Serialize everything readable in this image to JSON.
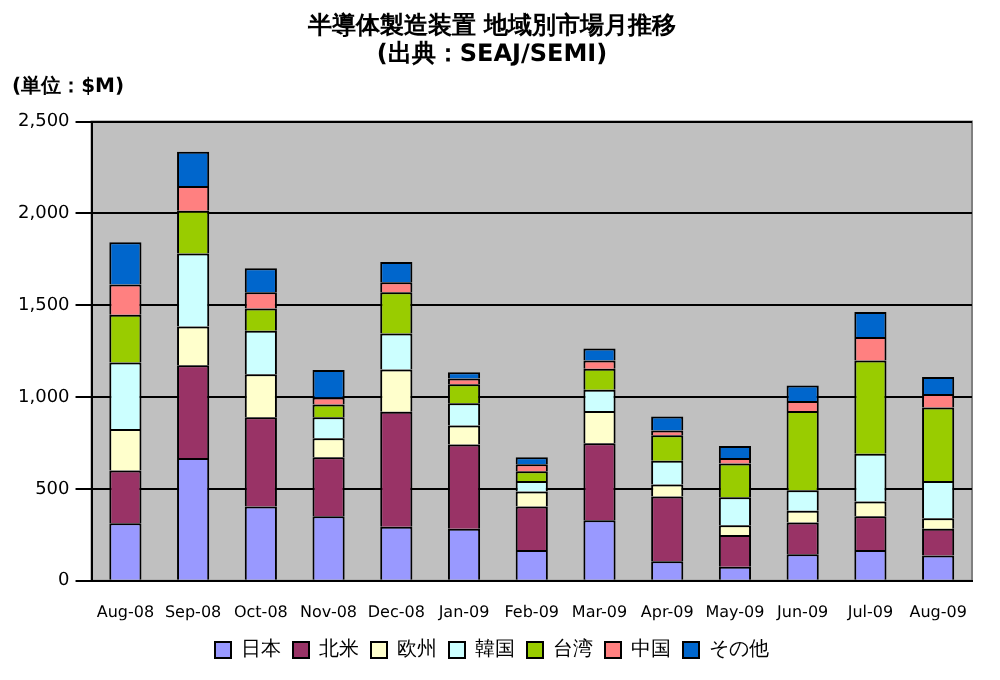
{
  "chart_data": {
    "type": "bar",
    "stacked": true,
    "title": "半導体製造装置 地域別市場月推移",
    "subtitle": "(出典：SEAJ/SEMI)",
    "ylabel": "(単位：$M)",
    "categories": [
      "Aug-08",
      "Sep-08",
      "Oct-08",
      "Nov-08",
      "Dec-08",
      "Jan-09",
      "Feb-09",
      "Mar-09",
      "Apr-09",
      "May-09",
      "Jun-09",
      "Jul-09",
      "Aug-09"
    ],
    "ylim": [
      0,
      2500
    ],
    "yticks": [
      {
        "value": 0,
        "label": "0"
      },
      {
        "value": 500,
        "label": "500"
      },
      {
        "value": 1000,
        "label": "1,000"
      },
      {
        "value": 1500,
        "label": "1,500"
      },
      {
        "value": 2000,
        "label": "2,000"
      },
      {
        "value": 2500,
        "label": "2,500"
      }
    ],
    "grid": "y",
    "legend": "bottom",
    "series": [
      {
        "name": "日本",
        "color": "#9999ff",
        "values": [
          313,
          669,
          405,
          352,
          294,
          283,
          168,
          329,
          107,
          76,
          145,
          168,
          138
        ]
      },
      {
        "name": "北米",
        "color": "#993366",
        "values": [
          287,
          505,
          486,
          321,
          627,
          459,
          237,
          420,
          352,
          173,
          172,
          184,
          145
        ]
      },
      {
        "name": "欧州",
        "color": "#ffffcc",
        "values": [
          226,
          210,
          233,
          103,
          230,
          103,
          81,
          176,
          65,
          53,
          65,
          80,
          57
        ]
      },
      {
        "name": "韓国",
        "color": "#ccffff",
        "values": [
          363,
          398,
          237,
          115,
          195,
          122,
          57,
          115,
          130,
          153,
          111,
          260,
          203
        ]
      },
      {
        "name": "台湾",
        "color": "#99cc00",
        "values": [
          260,
          233,
          122,
          69,
          225,
          103,
          53,
          114,
          138,
          183,
          432,
          508,
          401
        ]
      },
      {
        "name": "中国",
        "color": "#ff8080",
        "values": [
          164,
          134,
          88,
          38,
          54,
          31,
          39,
          46,
          26,
          31,
          54,
          127,
          73
        ]
      },
      {
        "name": "その他",
        "color": "#0066cc",
        "values": [
          230,
          187,
          130,
          149,
          111,
          34,
          38,
          65,
          77,
          65,
          84,
          137,
          92
        ]
      }
    ]
  }
}
